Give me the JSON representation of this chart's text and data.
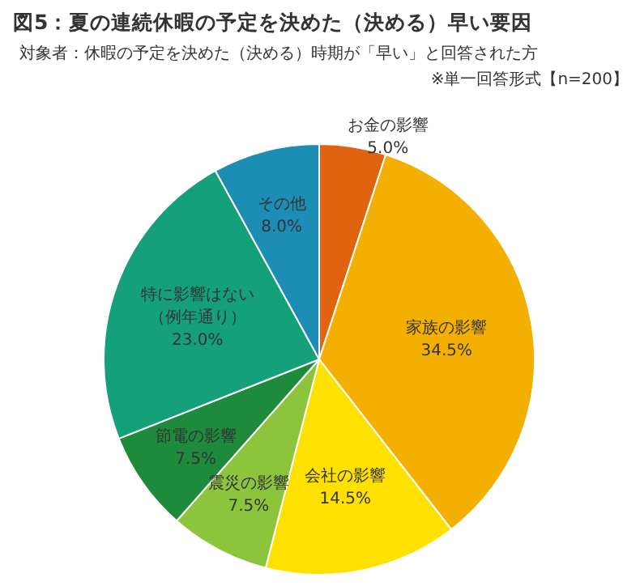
{
  "chart_data": {
    "type": "pie",
    "title": "図5：夏の連続休暇の予定を決めた（決める）早い要因",
    "subtitle": "対象者：休暇の予定を決めた（決める）時期が「早い」と回答された方",
    "annotations": [
      "※単一回答形式【n=200】"
    ],
    "categories": [
      "お金の影響",
      "家族の影響",
      "会社の影響",
      "震災の影響",
      "節電の影響",
      "特に影響はない（例年通り）",
      "その他"
    ],
    "values": [
      5.0,
      34.5,
      14.5,
      7.5,
      7.5,
      23.0,
      8.0
    ],
    "value_labels": [
      "5.0%",
      "34.5%",
      "14.5%",
      "7.5%",
      "7.5%",
      "23.0%",
      "8.0%"
    ],
    "colors": [
      "#e0640f",
      "#f4b000",
      "#ffe100",
      "#8cc43c",
      "#1e8a3c",
      "#14a079",
      "#1c8db4"
    ]
  }
}
